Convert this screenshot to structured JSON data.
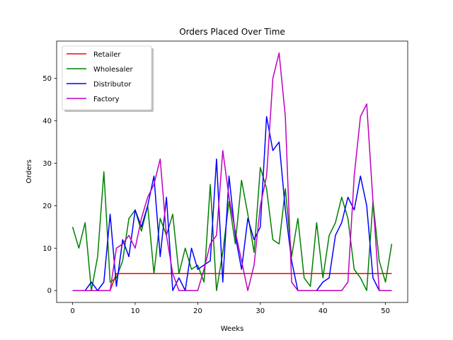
{
  "chart_data": {
    "type": "line",
    "title": "Orders Placed Over Time",
    "xlabel": "Weeks",
    "ylabel": "Orders",
    "xlim": [
      -2.55,
      53.55
    ],
    "ylim": [
      -2.8,
      58.8
    ],
    "xticks": [
      0,
      10,
      20,
      30,
      40,
      50
    ],
    "yticks": [
      0,
      10,
      20,
      30,
      40,
      50
    ],
    "grid": false,
    "legend_position": "top-left",
    "x": [
      0,
      1,
      2,
      3,
      4,
      5,
      6,
      7,
      8,
      9,
      10,
      11,
      12,
      13,
      14,
      15,
      16,
      17,
      18,
      19,
      20,
      21,
      22,
      23,
      24,
      25,
      26,
      27,
      28,
      29,
      30,
      31,
      32,
      33,
      34,
      35,
      36,
      37,
      38,
      39,
      40,
      41,
      42,
      43,
      44,
      45,
      46,
      47,
      48,
      49,
      50,
      51
    ],
    "series": [
      {
        "name": "Retailer",
        "color": "#ff0000",
        "values": [
          0,
          0,
          0,
          0,
          0,
          0,
          0,
          4,
          4,
          4,
          4,
          4,
          4,
          4,
          4,
          4,
          4,
          4,
          4,
          4,
          4,
          4,
          4,
          4,
          4,
          4,
          4,
          4,
          4,
          4,
          4,
          4,
          4,
          4,
          4,
          4,
          4,
          4,
          4,
          4,
          4,
          4,
          4,
          4,
          4,
          4,
          4,
          4,
          4,
          4,
          4,
          4
        ]
      },
      {
        "name": "Wholesaler",
        "color": "#008000",
        "values": [
          15,
          10,
          16,
          0,
          8,
          28,
          2,
          3,
          7,
          17,
          19,
          14,
          20,
          4,
          17,
          13,
          18,
          4,
          10,
          5,
          6,
          2,
          25,
          0,
          9,
          21,
          11,
          26,
          18,
          9,
          29,
          24,
          12,
          11,
          24,
          8,
          17,
          3,
          1,
          16,
          3,
          13,
          16,
          22,
          17,
          5,
          3,
          0,
          21,
          7,
          2,
          11
        ]
      },
      {
        "name": "Distributor",
        "color": "#0000ff",
        "values": [
          0,
          0,
          0,
          2,
          0,
          2,
          18,
          1,
          12,
          8,
          19,
          15,
          20,
          27,
          8,
          22,
          0,
          3,
          0,
          10,
          5,
          6,
          7,
          31,
          2,
          27,
          13,
          5,
          17,
          12,
          15,
          41,
          33,
          35,
          19,
          7,
          0,
          0,
          0,
          0,
          2,
          3,
          13,
          16,
          22,
          19,
          27,
          20,
          3,
          0,
          0,
          0
        ]
      },
      {
        "name": "Factory",
        "color": "#bf00bf",
        "values": [
          0,
          0,
          0,
          0,
          0,
          0,
          0,
          10,
          11,
          13,
          10,
          17,
          22,
          25,
          31,
          13,
          4,
          0,
          0,
          0,
          0,
          5,
          11,
          13,
          33,
          22,
          14,
          7,
          0,
          6,
          20,
          27,
          50,
          56,
          41,
          2,
          0,
          0,
          0,
          0,
          0,
          0,
          0,
          0,
          2,
          27,
          41,
          44,
          21,
          0,
          0,
          0
        ]
      }
    ]
  }
}
